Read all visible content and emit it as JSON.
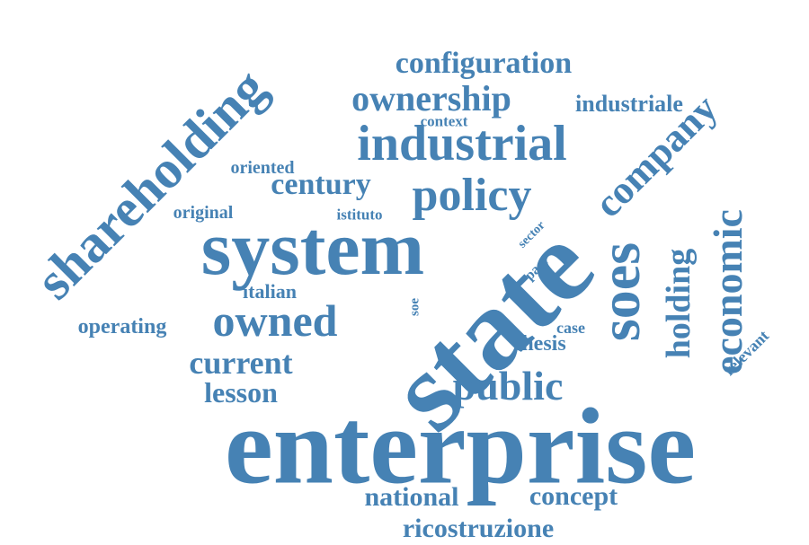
{
  "color": "#4682b4",
  "words": {
    "enterprise": "enterprise",
    "state": "state",
    "system": "system",
    "shareholding": "shareholding",
    "industrial": "industrial",
    "policy": "policy",
    "company": "company",
    "soes": "soes",
    "economic": "economic",
    "owned": "owned",
    "public": "public",
    "holding": "holding",
    "ownership": "ownership",
    "configuration": "configuration",
    "industriale": "industriale",
    "century": "century",
    "current": "current",
    "lesson": "lesson",
    "national": "national",
    "concept": "concept",
    "ricostruzione": "ricostruzione",
    "operating": "operating",
    "italian": "italian",
    "oriented": "oriented",
    "original": "original",
    "istituto": "istituto",
    "context": "context",
    "thesis": "thesis",
    "case": "case",
    "relevant": "relevant",
    "sector": "sector",
    "past": "past",
    "soe": "soe"
  }
}
